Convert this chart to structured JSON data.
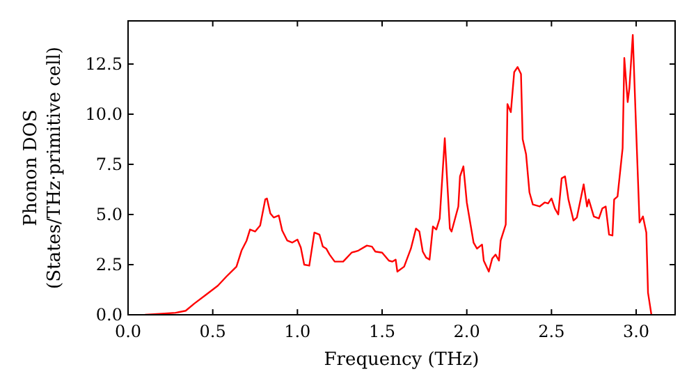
{
  "chart_data": {
    "type": "line",
    "xlabel": "Frequency (THz)",
    "ylabel": "Phonon DOS\n(States/THz·primitive cell)",
    "x": [
      0.1,
      0.2,
      0.28,
      0.34,
      0.39,
      0.46,
      0.53,
      0.58,
      0.64,
      0.67,
      0.7,
      0.72,
      0.75,
      0.78,
      0.81,
      0.82,
      0.84,
      0.86,
      0.89,
      0.91,
      0.94,
      0.97,
      1.0,
      1.02,
      1.04,
      1.07,
      1.1,
      1.13,
      1.15,
      1.17,
      1.19,
      1.22,
      1.27,
      1.32,
      1.36,
      1.41,
      1.44,
      1.46,
      1.5,
      1.54,
      1.56,
      1.58,
      1.59,
      1.63,
      1.67,
      1.7,
      1.72,
      1.74,
      1.76,
      1.78,
      1.8,
      1.82,
      1.84,
      1.87,
      1.9,
      1.91,
      1.95,
      1.96,
      1.98,
      2.0,
      2.04,
      2.06,
      2.09,
      2.1,
      2.13,
      2.15,
      2.17,
      2.19,
      2.2,
      2.23,
      2.24,
      2.26,
      2.28,
      2.3,
      2.32,
      2.33,
      2.35,
      2.37,
      2.39,
      2.43,
      2.46,
      2.48,
      2.5,
      2.52,
      2.54,
      2.56,
      2.58,
      2.6,
      2.63,
      2.65,
      2.69,
      2.71,
      2.72,
      2.75,
      2.78,
      2.8,
      2.82,
      2.84,
      2.86,
      2.87,
      2.89,
      2.92,
      2.93,
      2.95,
      2.96,
      2.98,
      3.0,
      3.02,
      3.04,
      3.06,
      3.07,
      3.09
    ],
    "series": [
      {
        "color": "#ff0000",
        "values": [
          0,
          0.05,
          0.1,
          0.2,
          0.55,
          1.0,
          1.45,
          1.9,
          2.4,
          3.2,
          3.7,
          4.25,
          4.15,
          4.45,
          5.75,
          5.8,
          5.05,
          4.85,
          4.95,
          4.2,
          3.7,
          3.6,
          3.75,
          3.35,
          2.5,
          2.45,
          4.1,
          4.0,
          3.4,
          3.3,
          3.0,
          2.65,
          2.65,
          3.1,
          3.2,
          3.45,
          3.4,
          3.15,
          3.1,
          2.7,
          2.65,
          2.75,
          2.15,
          2.4,
          3.3,
          4.3,
          4.15,
          3.15,
          2.85,
          2.75,
          4.4,
          4.25,
          4.8,
          8.8,
          4.3,
          4.15,
          5.4,
          6.9,
          7.4,
          5.6,
          3.6,
          3.3,
          3.5,
          2.7,
          2.15,
          2.8,
          3.0,
          2.7,
          3.7,
          4.5,
          10.5,
          10.1,
          12.1,
          12.35,
          12.0,
          8.75,
          8.0,
          6.1,
          5.5,
          5.4,
          5.6,
          5.55,
          5.8,
          5.3,
          5.0,
          6.8,
          6.9,
          5.75,
          4.7,
          4.85,
          6.5,
          5.4,
          5.75,
          4.9,
          4.8,
          5.3,
          5.4,
          4.0,
          3.95,
          5.75,
          5.9,
          8.3,
          12.8,
          10.6,
          11.3,
          13.95,
          9.2,
          4.6,
          4.9,
          4.1,
          1.1,
          0
        ]
      }
    ],
    "xlim": [
      0,
      3.23
    ],
    "ylim": [
      0,
      14.65
    ],
    "xticks": [
      {
        "value": 0,
        "label": "0.0"
      },
      {
        "value": 0.5,
        "label": "0.5"
      },
      {
        "value": 1,
        "label": "1.0"
      },
      {
        "value": 1.5,
        "label": "1.5"
      },
      {
        "value": 2,
        "label": "2.0"
      },
      {
        "value": 2.5,
        "label": "2.5"
      },
      {
        "value": 3,
        "label": "3.0"
      }
    ],
    "yticks": [
      {
        "value": 0,
        "label": "0.0"
      },
      2.5,
      {
        "value": 5,
        "label": "5.0"
      },
      7.5,
      {
        "value": 10,
        "label": "10.0"
      },
      12.5
    ],
    "grid": false,
    "marker": "none",
    "line_style": "solid"
  }
}
